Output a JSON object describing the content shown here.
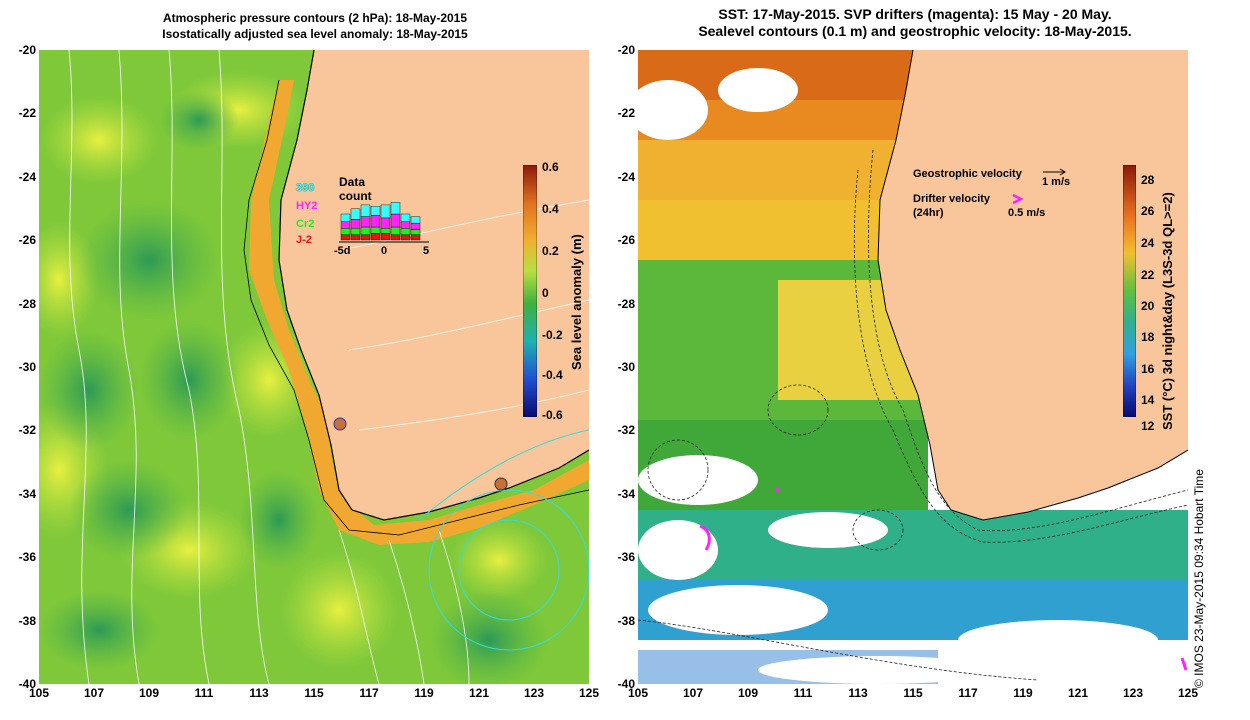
{
  "left_panel": {
    "title_line1": "Atmospheric pressure contours (2 hPa): 18-May-2015",
    "title_line2": "Isostatically adjusted sea level anomaly: 18-May-2015",
    "colorbar": {
      "title": "Sea level anomaly (m)",
      "ticks": [
        "0.6",
        "0.4",
        "0.2",
        "0",
        "-0.2",
        "-0.4",
        "-0.6"
      ]
    },
    "inset": {
      "title": "Data count",
      "series": [
        "390",
        "HY2",
        "Cr2",
        "J-2"
      ],
      "series_colors": [
        "#33ffff",
        "#ff22ff",
        "#22ee22",
        "#ee1111"
      ],
      "x_ticks": [
        "-5d",
        "0",
        "5"
      ]
    }
  },
  "right_panel": {
    "title_line1": "SST: 17-May-2015. SVP drifters (magenta): 15 May - 20 May.",
    "title_line2": "Sealevel contours (0.1 m) and geostrophic velocity: 18-May-2015.",
    "colorbar": {
      "title": "SST (°C) 3d night&day (L3S-3d QL>=2)",
      "ticks": [
        "28",
        "26",
        "24",
        "22",
        "20",
        "18",
        "16",
        "14",
        "12"
      ]
    },
    "legend": {
      "geostrophic_label": "Geostrophic velocity",
      "geostrophic_scale": "1 m/s",
      "drifter_label_line1": "Drifter velocity",
      "drifter_label_line2": "(24hr)",
      "drifter_scale": "0.5 m/s"
    }
  },
  "axes": {
    "y_ticks": [
      "-20",
      "-22",
      "-24",
      "-26",
      "-28",
      "-30",
      "-32",
      "-34",
      "-36",
      "-38",
      "-40"
    ],
    "x_ticks": [
      "105",
      "107",
      "109",
      "111",
      "113",
      "115",
      "117",
      "119",
      "121",
      "123",
      "125"
    ]
  },
  "credit": "© IMOS 23-May-2015 09:34 Hobart Time",
  "colors": {
    "land": "#f9c59a",
    "ocean_green": "#7ec83a",
    "sst_orange": "#f0a030",
    "coast_line": "#000000"
  }
}
